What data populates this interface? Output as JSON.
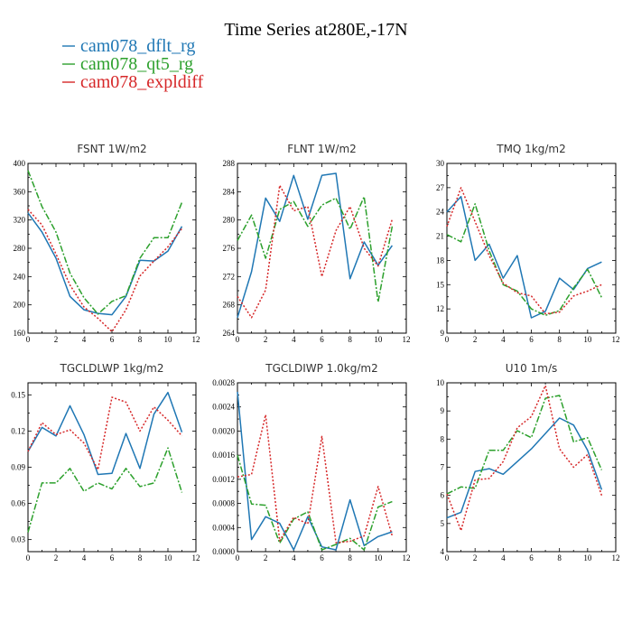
{
  "title": "Time Series at280E,-17N",
  "legend": [
    {
      "name": "cam078_dflt_rg",
      "color": "#1f77b4",
      "dash": "solid"
    },
    {
      "name": "cam078_qt5_rg",
      "color": "#2ca02c",
      "dash": "dashdot"
    },
    {
      "name": "cam078_expldiff",
      "color": "#d62728",
      "dash": "dot"
    }
  ],
  "chart_data": [
    {
      "type": "line",
      "title": "FSNT   1W/m2",
      "x": [
        0,
        1,
        2,
        3,
        4,
        5,
        6,
        7,
        8,
        9,
        10,
        11
      ],
      "xlim": [
        0,
        12
      ],
      "xticks": [
        0,
        2,
        4,
        6,
        8,
        10,
        12
      ],
      "ylim": [
        160,
        400
      ],
      "yticks": [
        160,
        200,
        240,
        280,
        320,
        360,
        400
      ],
      "yticklabels": [
        "160",
        "200",
        "240",
        "280",
        "320",
        "360",
        "400"
      ],
      "series": [
        {
          "name": "cam078_dflt_rg",
          "values": [
            330,
            303,
            266,
            212,
            193,
            188,
            186,
            212,
            263,
            262,
            276,
            311
          ]
        },
        {
          "name": "cam078_qt5_rg",
          "values": [
            390,
            339,
            303,
            245,
            210,
            187,
            205,
            213,
            266,
            295,
            295,
            345
          ]
        },
        {
          "name": "cam078_expldiff",
          "values": [
            335,
            313,
            272,
            228,
            197,
            181,
            162,
            193,
            241,
            262,
            282,
            308
          ]
        }
      ]
    },
    {
      "type": "line",
      "title": "FLNT   1W/m2",
      "x": [
        0,
        1,
        2,
        3,
        4,
        5,
        6,
        7,
        8,
        9,
        10,
        11
      ],
      "xlim": [
        0,
        12
      ],
      "xticks": [
        0,
        2,
        4,
        6,
        8,
        10,
        12
      ],
      "ylim": [
        264,
        288
      ],
      "yticks": [
        264,
        268,
        272,
        276,
        280,
        284,
        288
      ],
      "yticklabels": [
        "264",
        "268",
        "272",
        "276",
        "280",
        "284",
        "288"
      ],
      "series": [
        {
          "name": "cam078_dflt_rg",
          "values": [
            266.2,
            272.7,
            283.1,
            279.8,
            286.3,
            280.1,
            286.3,
            286.6,
            271.7,
            276.9,
            273.6,
            276.4
          ]
        },
        {
          "name": "cam078_qt5_rg",
          "values": [
            277.1,
            280.7,
            274.6,
            281.5,
            282.6,
            279.1,
            282.1,
            283.1,
            278.7,
            283.3,
            268.4,
            279.1
          ]
        },
        {
          "name": "cam078_expldiff",
          "values": [
            269.2,
            266.2,
            270.1,
            284.9,
            281.3,
            281.9,
            272.0,
            278.5,
            281.9,
            276.0,
            273.5,
            280.1
          ]
        }
      ]
    },
    {
      "type": "line",
      "title": "TMQ   1kg/m2",
      "x": [
        0,
        1,
        2,
        3,
        4,
        5,
        6,
        7,
        8,
        9,
        10,
        11
      ],
      "xlim": [
        0,
        12
      ],
      "xticks": [
        0,
        2,
        4,
        6,
        8,
        10,
        12
      ],
      "ylim": [
        9,
        30
      ],
      "yticks": [
        9,
        12,
        15,
        18,
        21,
        24,
        27,
        30
      ],
      "yticklabels": [
        "9",
        "12",
        "15",
        "18",
        "21",
        "24",
        "27",
        "30"
      ],
      "series": [
        {
          "name": "cam078_dflt_rg",
          "values": [
            24.0,
            25.9,
            18.0,
            20.0,
            15.8,
            18.6,
            10.9,
            11.7,
            15.8,
            14.4,
            17.0,
            17.8
          ]
        },
        {
          "name": "cam078_qt5_rg",
          "values": [
            21.2,
            20.3,
            25.0,
            19.2,
            15.0,
            14.2,
            12.0,
            11.2,
            11.8,
            14.6,
            16.9,
            13.4
          ]
        },
        {
          "name": "cam078_expldiff",
          "values": [
            22.2,
            27.0,
            22.8,
            18.6,
            15.2,
            14.0,
            13.6,
            11.4,
            11.6,
            13.6,
            14.2,
            15.0
          ]
        }
      ]
    },
    {
      "type": "line",
      "title": "TGCLDLWP   1kg/m2",
      "x": [
        0,
        1,
        2,
        3,
        4,
        5,
        6,
        7,
        8,
        9,
        10,
        11
      ],
      "xlim": [
        0,
        12
      ],
      "xticks": [
        0,
        2,
        4,
        6,
        8,
        10,
        12
      ],
      "ylim": [
        0.02,
        0.16
      ],
      "yticks": [
        0.03,
        0.06,
        0.09,
        0.12,
        0.15
      ],
      "yticklabels": [
        "0.03",
        "0.06",
        "0.09",
        "0.12",
        "0.15"
      ],
      "series": [
        {
          "name": "cam078_dflt_rg",
          "values": [
            0.103,
            0.123,
            0.116,
            0.141,
            0.117,
            0.084,
            0.085,
            0.118,
            0.089,
            0.134,
            0.152,
            0.119
          ]
        },
        {
          "name": "cam078_qt5_rg",
          "values": [
            0.036,
            0.077,
            0.077,
            0.089,
            0.07,
            0.077,
            0.072,
            0.089,
            0.074,
            0.077,
            0.106,
            0.069
          ]
        },
        {
          "name": "cam078_expldiff",
          "values": [
            0.103,
            0.127,
            0.117,
            0.121,
            0.11,
            0.088,
            0.148,
            0.144,
            0.12,
            0.14,
            0.129,
            0.116
          ]
        }
      ]
    },
    {
      "type": "line",
      "title": "TGCLDIWP   1.0kg/m2",
      "x": [
        0,
        1,
        2,
        3,
        4,
        5,
        6,
        7,
        8,
        9,
        10,
        11
      ],
      "xlim": [
        0,
        12
      ],
      "xticks": [
        0,
        2,
        4,
        6,
        8,
        10,
        12
      ],
      "ylim": [
        0,
        0.0028
      ],
      "yticks": [
        0,
        0.0004,
        0.0008,
        0.0012,
        0.0016,
        0.002,
        0.0024,
        0.0028
      ],
      "yticklabels": [
        "0.0000",
        "0.0004",
        "0.0008",
        "0.0012",
        "0.0016",
        "0.0020",
        "0.0024",
        "0.0028"
      ],
      "series": [
        {
          "name": "cam078_dflt_rg",
          "values": [
            0.00265,
            0.0002,
            0.00058,
            0.00047,
            3e-05,
            0.00058,
            8e-05,
            3e-05,
            0.00086,
            0.0001,
            0.00025,
            0.00033
          ]
        },
        {
          "name": "cam078_qt5_rg",
          "values": [
            0.0016,
            0.00079,
            0.00077,
            0.00014,
            0.00054,
            0.00066,
            3e-05,
            0.00012,
            0.00022,
            3e-05,
            0.00074,
            0.00083
          ]
        },
        {
          "name": "cam078_expldiff",
          "values": [
            0.00124,
            0.00128,
            0.00227,
            0.00018,
            0.00057,
            0.00046,
            0.00191,
            0.00015,
            0.00017,
            0.00026,
            0.00108,
            0.00026
          ]
        }
      ]
    },
    {
      "type": "line",
      "title": "U10   1m/s",
      "x": [
        0,
        1,
        2,
        3,
        4,
        5,
        6,
        7,
        8,
        9,
        10,
        11
      ],
      "xlim": [
        0,
        12
      ],
      "xticks": [
        0,
        2,
        4,
        6,
        8,
        10,
        12
      ],
      "ylim": [
        4,
        10
      ],
      "yticks": [
        4,
        5,
        6,
        7,
        8,
        9,
        10
      ],
      "yticklabels": [
        "4",
        "5",
        "6",
        "7",
        "8",
        "9",
        "10"
      ],
      "series": [
        {
          "name": "cam078_dflt_rg",
          "values": [
            5.2,
            5.4,
            6.85,
            6.95,
            6.75,
            7.2,
            7.65,
            8.2,
            8.75,
            8.5,
            7.6,
            6.2
          ]
        },
        {
          "name": "cam078_qt5_rg",
          "values": [
            6.05,
            6.3,
            6.25,
            7.6,
            7.6,
            8.3,
            8.05,
            9.45,
            9.55,
            7.9,
            8.05,
            6.9
          ]
        },
        {
          "name": "cam078_expldiff",
          "values": [
            6.05,
            4.75,
            6.55,
            6.6,
            7.2,
            8.4,
            8.8,
            9.9,
            7.65,
            7.0,
            7.45,
            6.0
          ]
        }
      ]
    }
  ]
}
